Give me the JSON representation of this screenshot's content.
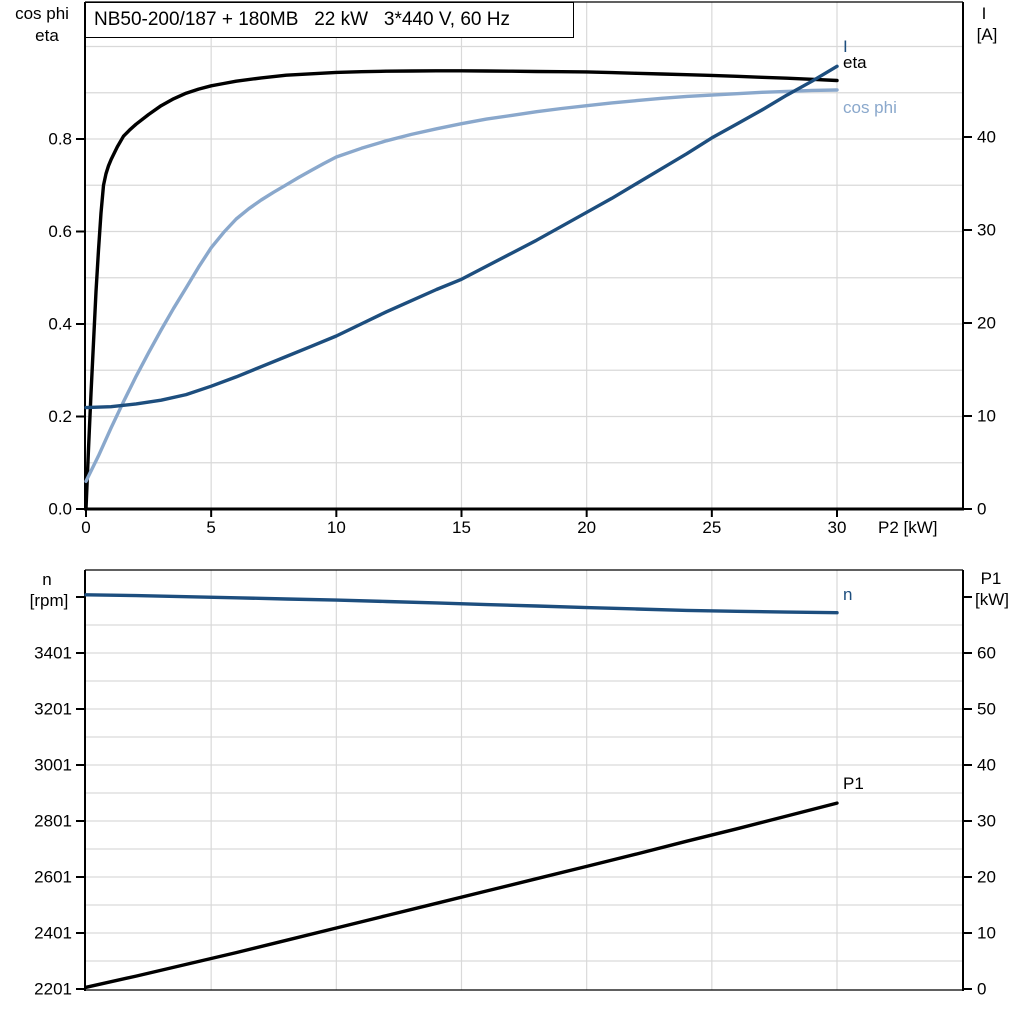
{
  "title_box": {
    "text": "NB50-200/187 + 180MB   22 kW   3*440 V, 60 Hz"
  },
  "colors": {
    "grid": "#d9d9d9",
    "axis": "#000000",
    "eta": "#000000",
    "cos_phi": "#8aa8cc",
    "current": "#1d4e7e",
    "speed": "#1d4e7e",
    "p1": "#000000"
  },
  "chart_data": [
    {
      "type": "line",
      "title": "NB50-200/187 + 180MB   22 kW   3*440 V, 60 Hz",
      "grid": true,
      "legend_position": "on-curve-right",
      "x_axis": {
        "label": "P2 [kW]",
        "min": 0,
        "max": 35,
        "tick_values": [
          0,
          5,
          10,
          15,
          20,
          25,
          30
        ],
        "tick_labels": [
          "0",
          "5",
          "10",
          "15",
          "20",
          "25",
          "30"
        ],
        "grid_step": 5
      },
      "left_axis": {
        "header_lines": [
          "cos phi",
          "eta"
        ],
        "min": 0.0,
        "max": 1.1,
        "tick_values": [
          0,
          0.2,
          0.4,
          0.6,
          0.8
        ],
        "tick_labels": [
          "0.0",
          "0.2",
          "0.4",
          "0.6",
          "0.8"
        ],
        "unlabeled_tick_values": [],
        "grid_step": 0.1
      },
      "right_axis": {
        "header_lines": [
          "I",
          "[A]"
        ],
        "min": 0,
        "max": 54.5,
        "tick_values": [
          0,
          10,
          20,
          30,
          40
        ],
        "tick_labels": [
          "0",
          "10",
          "20",
          "30",
          "40"
        ],
        "unlabeled_tick_values": []
      },
      "series": [
        {
          "name": "eta",
          "axis": "left",
          "color": "#000000",
          "points": [
            [
              0,
              0
            ],
            [
              0.1,
              0.13
            ],
            [
              0.2,
              0.25
            ],
            [
              0.3,
              0.36
            ],
            [
              0.4,
              0.47
            ],
            [
              0.5,
              0.56
            ],
            [
              0.6,
              0.64
            ],
            [
              0.7,
              0.7
            ],
            [
              0.8,
              0.725
            ],
            [
              0.9,
              0.742
            ],
            [
              1,
              0.755
            ],
            [
              1.25,
              0.783
            ],
            [
              1.5,
              0.806
            ],
            [
              1.75,
              0.82
            ],
            [
              2,
              0.832
            ],
            [
              2.5,
              0.853
            ],
            [
              3,
              0.872
            ],
            [
              3.5,
              0.887
            ],
            [
              4,
              0.899
            ],
            [
              4.5,
              0.908
            ],
            [
              5,
              0.915
            ],
            [
              5.5,
              0.92
            ],
            [
              6,
              0.925
            ],
            [
              7,
              0.932
            ],
            [
              8,
              0.938
            ],
            [
              9,
              0.941
            ],
            [
              10,
              0.944
            ],
            [
              11,
              0.9455
            ],
            [
              12,
              0.9465
            ],
            [
              13,
              0.947
            ],
            [
              14,
              0.9475
            ],
            [
              15,
              0.9475
            ],
            [
              16,
              0.947
            ],
            [
              17,
              0.9465
            ],
            [
              18,
              0.946
            ],
            [
              19,
              0.9455
            ],
            [
              20,
              0.945
            ],
            [
              21,
              0.9435
            ],
            [
              22,
              0.942
            ],
            [
              23,
              0.9405
            ],
            [
              24,
              0.939
            ],
            [
              25,
              0.9375
            ],
            [
              26,
              0.9355
            ],
            [
              27,
              0.9335
            ],
            [
              28,
              0.9315
            ],
            [
              29,
              0.929
            ],
            [
              30,
              0.9265
            ]
          ]
        },
        {
          "name": "cos phi",
          "axis": "left",
          "color": "#8aa8cc",
          "points": [
            [
              0,
              0.06
            ],
            [
              0.5,
              0.115
            ],
            [
              1,
              0.175
            ],
            [
              1.5,
              0.232
            ],
            [
              2,
              0.287
            ],
            [
              2.5,
              0.338
            ],
            [
              3,
              0.387
            ],
            [
              3.5,
              0.434
            ],
            [
              4,
              0.478
            ],
            [
              4.5,
              0.523
            ],
            [
              5,
              0.565
            ],
            [
              5.5,
              0.598
            ],
            [
              6,
              0.627
            ],
            [
              6.5,
              0.649
            ],
            [
              7,
              0.668
            ],
            [
              7.5,
              0.685
            ],
            [
              8,
              0.701
            ],
            [
              8.5,
              0.717
            ],
            [
              9,
              0.732
            ],
            [
              9.5,
              0.747
            ],
            [
              10,
              0.761
            ],
            [
              11,
              0.78
            ],
            [
              12,
              0.796
            ],
            [
              13,
              0.81
            ],
            [
              14,
              0.822
            ],
            [
              15,
              0.833
            ],
            [
              16,
              0.843
            ],
            [
              17,
              0.851
            ],
            [
              18,
              0.859
            ],
            [
              19,
              0.866
            ],
            [
              20,
              0.872
            ],
            [
              21,
              0.878
            ],
            [
              22,
              0.883
            ],
            [
              23,
              0.888
            ],
            [
              24,
              0.892
            ],
            [
              25,
              0.895
            ],
            [
              26,
              0.898
            ],
            [
              27,
              0.901
            ],
            [
              28,
              0.903
            ],
            [
              29,
              0.905
            ],
            [
              30,
              0.906
            ]
          ]
        },
        {
          "name": "I",
          "axis": "right",
          "color": "#1d4e7e",
          "points": [
            [
              0,
              10.9
            ],
            [
              1,
              11.0
            ],
            [
              2,
              11.3
            ],
            [
              3,
              11.7
            ],
            [
              4,
              12.3
            ],
            [
              5,
              13.2
            ],
            [
              6,
              14.2
            ],
            [
              7,
              15.3
            ],
            [
              8,
              16.4
            ],
            [
              9,
              17.5
            ],
            [
              10,
              18.6
            ],
            [
              11,
              19.9
            ],
            [
              12,
              21.2
            ],
            [
              13,
              22.4
            ],
            [
              14,
              23.6
            ],
            [
              15,
              24.7
            ],
            [
              16,
              26.1
            ],
            [
              17,
              27.5
            ],
            [
              18,
              28.9
            ],
            [
              19,
              30.4
            ],
            [
              20,
              31.9
            ],
            [
              21,
              33.4
            ],
            [
              22,
              35.0
            ],
            [
              23,
              36.6
            ],
            [
              24,
              38.2
            ],
            [
              25,
              39.9
            ],
            [
              26,
              41.4
            ],
            [
              27,
              42.9
            ],
            [
              28,
              44.5
            ],
            [
              29,
              46.0
            ],
            [
              30,
              47.6
            ]
          ]
        }
      ]
    },
    {
      "type": "line",
      "title": "",
      "grid": true,
      "legend_position": "on-curve-right",
      "x_axis": {
        "label": "",
        "min": 0,
        "max": 35,
        "tick_values": [],
        "tick_labels": [],
        "grid_step": 5
      },
      "left_axis": {
        "header_lines": [
          "n",
          "[rpm]"
        ],
        "min": 2201,
        "max": 3697,
        "tick_values": [
          2201,
          2401,
          2601,
          2801,
          3001,
          3201,
          3401
        ],
        "tick_labels": [
          "2201",
          "2401",
          "2601",
          "2801",
          "3001",
          "3201",
          "3401"
        ],
        "unlabeled_tick_values": [
          3601
        ],
        "grid_step": 100
      },
      "right_axis": {
        "header_lines": [
          "P1",
          "[kW]"
        ],
        "min": 0,
        "max": 74.8,
        "tick_values": [
          0,
          10,
          20,
          30,
          40,
          50,
          60
        ],
        "tick_labels": [
          "0",
          "10",
          "20",
          "30",
          "40",
          "50",
          "60"
        ],
        "unlabeled_tick_values": [
          70
        ]
      },
      "series": [
        {
          "name": "n",
          "axis": "left",
          "color": "#1d4e7e",
          "points": [
            [
              0,
              3609
            ],
            [
              2,
              3606
            ],
            [
              4,
              3602
            ],
            [
              6,
              3598
            ],
            [
              8,
              3594
            ],
            [
              10,
              3590
            ],
            [
              12,
              3585
            ],
            [
              14,
              3580
            ],
            [
              16,
              3574
            ],
            [
              18,
              3569
            ],
            [
              20,
              3563
            ],
            [
              22,
              3558
            ],
            [
              24,
              3553
            ],
            [
              26,
              3550
            ],
            [
              28,
              3547
            ],
            [
              30,
              3545
            ]
          ]
        },
        {
          "name": "P1",
          "axis": "right",
          "color": "#000000",
          "points": [
            [
              0,
              0.3
            ],
            [
              2,
              2.3
            ],
            [
              4,
              4.4
            ],
            [
              6,
              6.5
            ],
            [
              8,
              8.7
            ],
            [
              10,
              10.9
            ],
            [
              12,
              13.1
            ],
            [
              14,
              15.3
            ],
            [
              16,
              17.5
            ],
            [
              18,
              19.7
            ],
            [
              20,
              21.9
            ],
            [
              22,
              24.1
            ],
            [
              24,
              26.4
            ],
            [
              26,
              28.6
            ],
            [
              28,
              30.9
            ],
            [
              30,
              33.2
            ]
          ]
        }
      ]
    }
  ]
}
